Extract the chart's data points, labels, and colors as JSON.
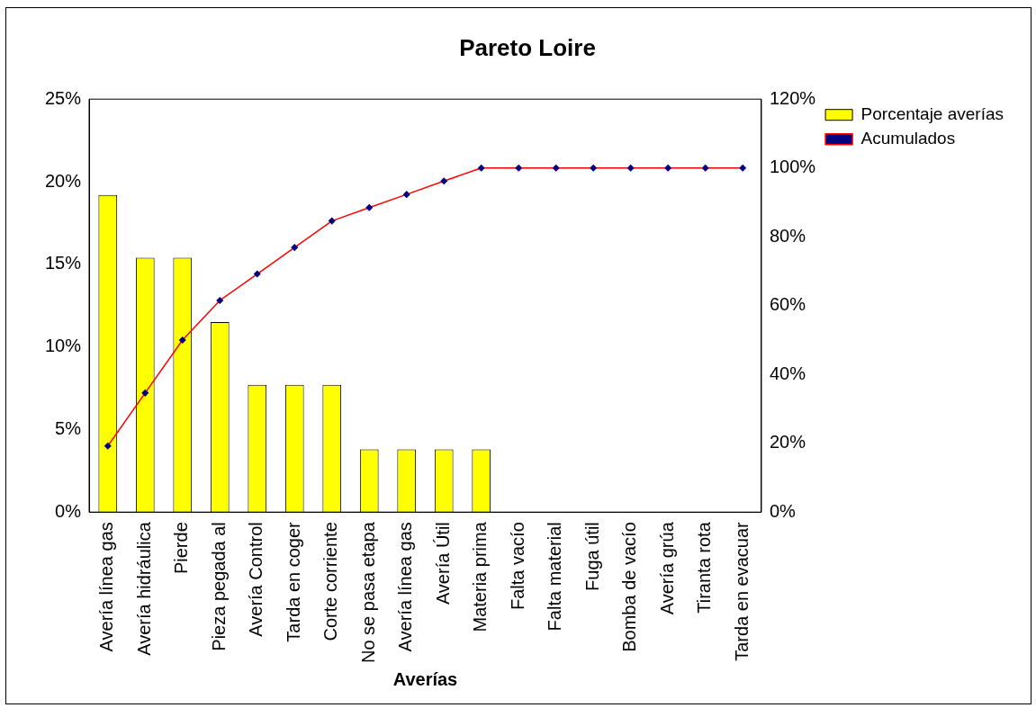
{
  "chart_data": {
    "type": "bar",
    "title": "Pareto Loire",
    "xlabel": "Averías",
    "categories": [
      "Avería línea gas",
      "Avería hidráulica",
      "Pierde",
      "Pieza pegada al",
      "Avería Control",
      "Tarda en coger",
      "Corte corriente",
      "No se pasa etapa",
      "Avería línea gas",
      "Avería Útil",
      "Materia prima",
      "Falta vacío",
      "Falta material",
      "Fuga útil",
      "Bomba de vacío",
      "Avería grúa",
      "Tiranta rota",
      "Tarda en evacuar"
    ],
    "series": [
      {
        "name": "Porcentaje averías",
        "type": "bar",
        "color": "#ffff00",
        "values": [
          19.2,
          15.4,
          15.4,
          11.5,
          7.7,
          7.7,
          7.7,
          3.8,
          3.8,
          3.8,
          3.8,
          0,
          0,
          0,
          0,
          0,
          0,
          0
        ]
      },
      {
        "name": "Acumulados",
        "type": "line",
        "axis": "y2",
        "color": "#ff0000",
        "marker": "diamond",
        "values": [
          19.2,
          34.6,
          50,
          61.5,
          69.2,
          76.9,
          84.6,
          88.5,
          92.3,
          96.2,
          100,
          100,
          100,
          100,
          100,
          100,
          100,
          100
        ]
      }
    ],
    "ylim": [
      0,
      25
    ],
    "yticks": [
      {
        "value": 0,
        "label": "0%"
      },
      {
        "value": 5,
        "label": "5%"
      },
      {
        "value": 10,
        "label": "10%"
      },
      {
        "value": 15,
        "label": "15%"
      },
      {
        "value": 20,
        "label": "20%"
      },
      {
        "value": 25,
        "label": "25%"
      }
    ],
    "y2lim": [
      0,
      120
    ],
    "y2ticks": [
      {
        "value": 0,
        "label": "0%"
      },
      {
        "value": 20,
        "label": "20%"
      },
      {
        "value": 40,
        "label": "40%"
      },
      {
        "value": 60,
        "label": "60%"
      },
      {
        "value": 80,
        "label": "80%"
      },
      {
        "value": 100,
        "label": "100%"
      },
      {
        "value": 120,
        "label": "120%"
      }
    ],
    "grid": false,
    "legend": "right"
  }
}
